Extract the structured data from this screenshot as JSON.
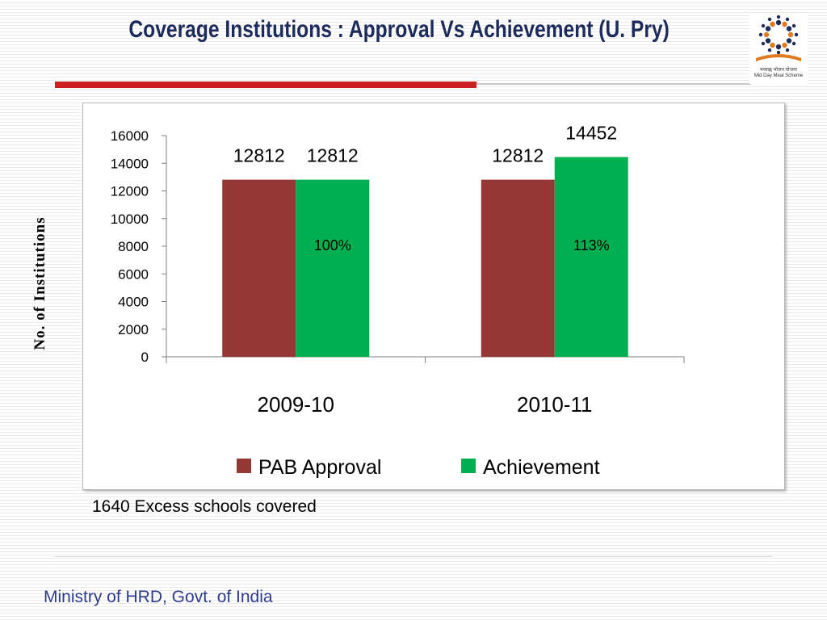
{
  "slide": {
    "title": "Coverage Institutions : Approval Vs Achievement (U. Pry)",
    "note": "1640  Excess schools covered",
    "footer": "Ministry of HRD, Govt. of India",
    "logo": {
      "icon": "mid-day-meal-logo-icon",
      "hindi_text": "मध्याह्न भोजन योजना",
      "english_text": "Mid Day Meal Scheme"
    }
  },
  "chart_data": {
    "type": "bar",
    "ylabel": "No. of Institutions",
    "xlabel": "",
    "ylim": [
      0,
      16000
    ],
    "yticks": [
      0,
      2000,
      4000,
      6000,
      8000,
      10000,
      12000,
      14000,
      16000
    ],
    "categories": [
      "2009-10",
      "2010-11"
    ],
    "series": [
      {
        "name": "PAB Approval",
        "color": "#953735",
        "values": [
          12812,
          12812
        ]
      },
      {
        "name": "Achievement",
        "color": "#00b050",
        "values": [
          12812,
          14452
        ]
      }
    ],
    "data_labels": [
      [
        "12812",
        "12812"
      ],
      [
        "12812",
        "14452"
      ]
    ],
    "annotations": [
      "100%",
      "113%"
    ],
    "legend_position": "bottom",
    "grid": false
  }
}
